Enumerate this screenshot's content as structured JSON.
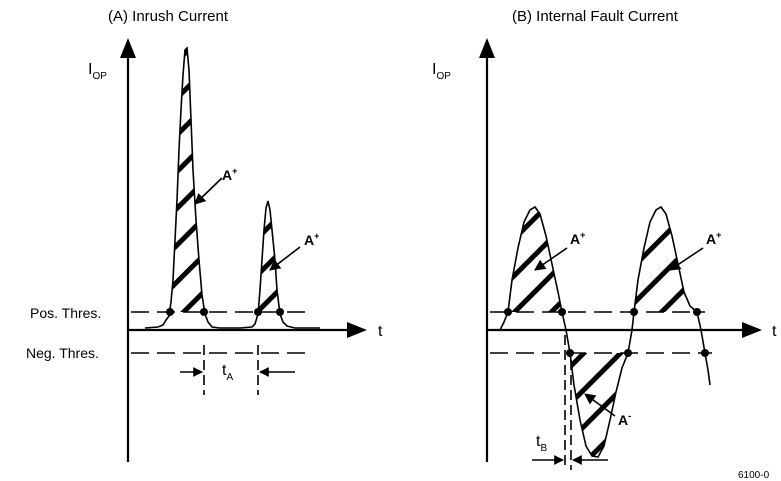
{
  "panels": {
    "inrush": {
      "title": "(A) Inrush Current",
      "y_axis": "I",
      "y_axis_sub": "OP",
      "x_axis": "t",
      "pos_threshold": "Pos. Thres.",
      "neg_threshold": "Neg. Thres.",
      "area_label": "A",
      "area_sup": "+",
      "delay_label": "t",
      "delay_sub": "A"
    },
    "fault": {
      "title": "(B) Internal Fault Current",
      "y_axis": "I",
      "y_axis_sub": "OP",
      "x_axis": "t",
      "area_label": "A",
      "area_pos_sup": "+",
      "area_neg_sup": "-",
      "delay_label": "t",
      "delay_sub": "B"
    }
  },
  "figure_id": "6100-0"
}
